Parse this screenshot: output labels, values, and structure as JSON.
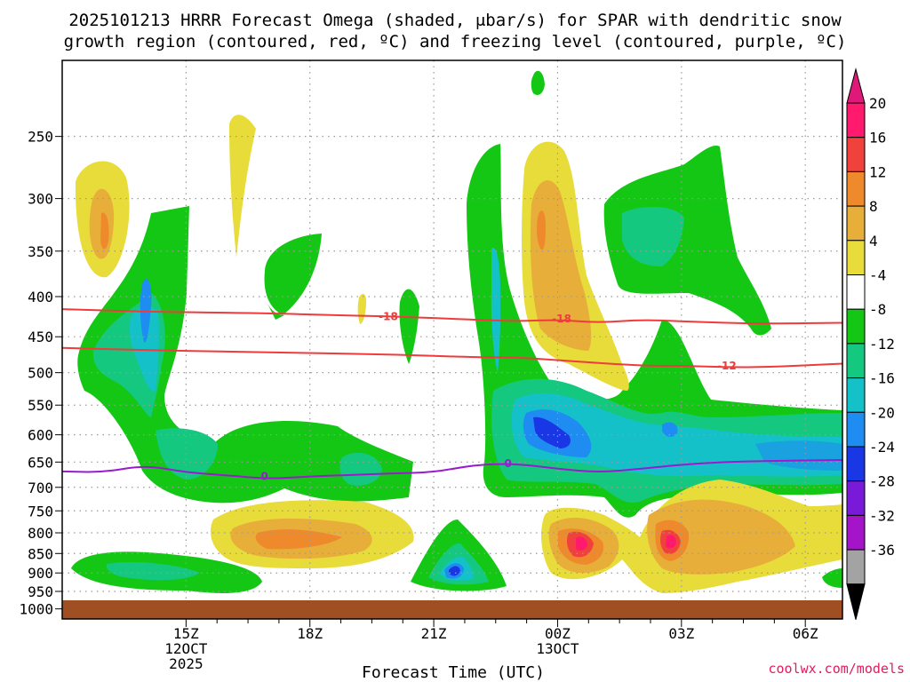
{
  "chart_data": {
    "type": "contour",
    "title_lines": [
      "2025101213 HRRR Forecast Omega (shaded, μbar/s) for SPAR with dendritic snow",
      "growth region (contoured, red, ºC) and freezing level (contoured, purple, ºC)"
    ],
    "xlabel": "Forecast Time (UTC)",
    "credit": "coolwx.com/models",
    "x_ticks": [
      {
        "h": 14,
        "lines": [
          "15Z",
          "12OCT",
          "2025"
        ]
      },
      {
        "h": 17,
        "lines": [
          "18Z"
        ]
      },
      {
        "h": 20,
        "lines": [
          "21Z"
        ]
      },
      {
        "h": 23,
        "lines": [
          "00Z",
          "13OCT"
        ]
      },
      {
        "h": 26,
        "lines": [
          "03Z"
        ]
      },
      {
        "h": 29,
        "lines": [
          "06Z"
        ]
      }
    ],
    "x_minor": [
      14.75,
      15.5,
      16.25,
      17.75,
      18.5,
      19.25,
      20.75,
      21.5,
      22.25,
      23.75,
      24.5,
      25.25,
      26.75,
      27.5,
      28.25
    ],
    "xlim": [
      11,
      29.9
    ],
    "y_ticks": [
      250,
      300,
      350,
      400,
      450,
      500,
      550,
      600,
      650,
      700,
      750,
      800,
      850,
      900,
      950,
      1000
    ],
    "ylim": [
      200,
      1030
    ],
    "y_scale": "log",
    "ground_pressure": 975,
    "colorbar": {
      "labels": [
        "20",
        "16",
        "12",
        "8",
        "4",
        "-4",
        "-8",
        "-12",
        "-16",
        "-20",
        "-24",
        "-28",
        "-32",
        "-36"
      ],
      "colors": [
        "#ff1a6e",
        "#f0413c",
        "#ef8a2c",
        "#e8ae3a",
        "#e8dc3a",
        "#ffffff",
        "#14c714",
        "#14c87f",
        "#14c1c9",
        "#1e8cf0",
        "#1a37e6",
        "#7a1ad9",
        "#a414c9",
        "#a3a3a3",
        "#000000"
      ],
      "top_color": "#e0187a"
    },
    "shading_levels": {
      "pos4": "#e8dc3a",
      "pos8": "#e8ae3a",
      "pos12": "#ef8a2c",
      "pos16": "#f0413c",
      "pos20": "#ff1a6e",
      "neg4": "#14c714",
      "neg8": "#14c87f",
      "neg12": "#14c1c9",
      "neg16": "#1e8cf0",
      "neg20": "#1a37e6"
    },
    "ground_color": "#a04f22",
    "contours": [
      {
        "label": "-18",
        "color": "#ee3c3c",
        "points": [
          [
            11,
            415
          ],
          [
            13,
            418
          ],
          [
            16,
            420
          ],
          [
            18,
            423
          ],
          [
            19,
            424
          ],
          [
            21,
            428
          ],
          [
            22,
            430
          ],
          [
            23,
            428
          ],
          [
            24,
            432
          ],
          [
            25,
            428
          ],
          [
            26,
            430
          ],
          [
            27,
            432
          ],
          [
            28,
            433
          ],
          [
            29.9,
            432
          ]
        ],
        "label_at": [
          [
            18.9,
            424
          ],
          [
            23.1,
            427
          ]
        ]
      },
      {
        "label": "-12",
        "color": "#ee3c3c",
        "points": [
          [
            11,
            465
          ],
          [
            13,
            468
          ],
          [
            15,
            470
          ],
          [
            17,
            472
          ],
          [
            19,
            474
          ],
          [
            21,
            478
          ],
          [
            22,
            478
          ],
          [
            23,
            482
          ],
          [
            25,
            490
          ],
          [
            26,
            490
          ],
          [
            27,
            492
          ],
          [
            28,
            492
          ],
          [
            29.9,
            487
          ]
        ],
        "label_at": [
          [
            27.1,
            490
          ]
        ]
      },
      {
        "label": "0",
        "color": "#9a1ad0",
        "points": [
          [
            11,
            668
          ],
          [
            12,
            670
          ],
          [
            13,
            656
          ],
          [
            14,
            670
          ],
          [
            15,
            676
          ],
          [
            16,
            683
          ],
          [
            17,
            678
          ],
          [
            18,
            675
          ],
          [
            19,
            672
          ],
          [
            20,
            670
          ],
          [
            21,
            655
          ],
          [
            22,
            653
          ],
          [
            23,
            663
          ],
          [
            24,
            670
          ],
          [
            25,
            663
          ],
          [
            26,
            655
          ],
          [
            27,
            650
          ],
          [
            28,
            648
          ],
          [
            29.9,
            646
          ]
        ],
        "label_at": [
          [
            15.9,
            678
          ],
          [
            21.8,
            653
          ]
        ]
      }
    ]
  }
}
